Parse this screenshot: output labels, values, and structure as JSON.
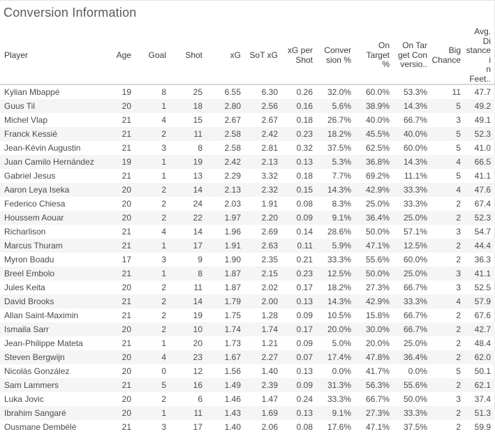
{
  "chart_data": {
    "type": "table",
    "title": "Conversion Information",
    "colors": {
      "row_band": "#f5f5f5",
      "header_rule": "#d9d9d9",
      "text": "#4a4a4a"
    },
    "columns": [
      {
        "key": "player",
        "label": "Player",
        "align": "left"
      },
      {
        "key": "age",
        "label": "Age",
        "align": "right"
      },
      {
        "key": "goal",
        "label": "Goal",
        "align": "right"
      },
      {
        "key": "shot",
        "label": "Shot",
        "align": "right"
      },
      {
        "key": "xg",
        "label": "xG",
        "align": "right"
      },
      {
        "key": "sot_xg",
        "label": "SoT xG",
        "align": "right"
      },
      {
        "key": "xg_per_shot",
        "label": "xG per\nShot",
        "align": "right"
      },
      {
        "key": "conversion_pct",
        "label": "Conver\nsion %",
        "align": "right"
      },
      {
        "key": "on_target_pct",
        "label": "On\nTarget\n%",
        "align": "right"
      },
      {
        "key": "on_target_conversion",
        "label": "On Tar\nget Con\nversio..",
        "align": "right"
      },
      {
        "key": "big_chance",
        "label": "Big\nChance",
        "align": "right"
      },
      {
        "key": "avg_distance_feet",
        "label": "Avg. Di\nstance i\nn Feet..",
        "align": "right"
      }
    ],
    "rows": [
      [
        "Kylian Mbappé",
        "19",
        "8",
        "25",
        "6.55",
        "6.30",
        "0.26",
        "32.0%",
        "60.0%",
        "53.3%",
        "11",
        "47.7"
      ],
      [
        "Guus Til",
        "20",
        "1",
        "18",
        "2.80",
        "2.56",
        "0.16",
        "5.6%",
        "38.9%",
        "14.3%",
        "5",
        "49.2"
      ],
      [
        "Michel Vlap",
        "21",
        "4",
        "15",
        "2.67",
        "2.67",
        "0.18",
        "26.7%",
        "40.0%",
        "66.7%",
        "3",
        "49.1"
      ],
      [
        "Franck Kessié",
        "21",
        "2",
        "11",
        "2.58",
        "2.42",
        "0.23",
        "18.2%",
        "45.5%",
        "40.0%",
        "5",
        "52.3"
      ],
      [
        "Jean-Kévin Augustin",
        "21",
        "3",
        "8",
        "2.58",
        "2.81",
        "0.32",
        "37.5%",
        "62.5%",
        "60.0%",
        "5",
        "41.0"
      ],
      [
        "Juan Camilo Hernández",
        "19",
        "1",
        "19",
        "2.42",
        "2.13",
        "0.13",
        "5.3%",
        "36.8%",
        "14.3%",
        "4",
        "66.5"
      ],
      [
        "Gabriel Jesus",
        "21",
        "1",
        "13",
        "2.29",
        "3.32",
        "0.18",
        "7.7%",
        "69.2%",
        "11.1%",
        "5",
        "41.1"
      ],
      [
        "Aaron Leya Iseka",
        "20",
        "2",
        "14",
        "2.13",
        "2.32",
        "0.15",
        "14.3%",
        "42.9%",
        "33.3%",
        "4",
        "47.6"
      ],
      [
        "Federico Chiesa",
        "20",
        "2",
        "24",
        "2.03",
        "1.91",
        "0.08",
        "8.3%",
        "25.0%",
        "33.3%",
        "2",
        "67.4"
      ],
      [
        "Houssem Aouar",
        "20",
        "2",
        "22",
        "1.97",
        "2.20",
        "0.09",
        "9.1%",
        "36.4%",
        "25.0%",
        "2",
        "52.3"
      ],
      [
        "Richarlison",
        "21",
        "4",
        "14",
        "1.96",
        "2.69",
        "0.14",
        "28.6%",
        "50.0%",
        "57.1%",
        "3",
        "54.7"
      ],
      [
        "Marcus Thuram",
        "21",
        "1",
        "17",
        "1.91",
        "2.63",
        "0.11",
        "5.9%",
        "47.1%",
        "12.5%",
        "2",
        "44.4"
      ],
      [
        "Myron Boadu",
        "17",
        "3",
        "9",
        "1.90",
        "2.35",
        "0.21",
        "33.3%",
        "55.6%",
        "60.0%",
        "2",
        "36.3"
      ],
      [
        "Breel Embolo",
        "21",
        "1",
        "8",
        "1.87",
        "2.15",
        "0.23",
        "12.5%",
        "50.0%",
        "25.0%",
        "3",
        "41.1"
      ],
      [
        "Jules Keita",
        "20",
        "2",
        "11",
        "1.87",
        "2.02",
        "0.17",
        "18.2%",
        "27.3%",
        "66.7%",
        "3",
        "52.5"
      ],
      [
        "David Brooks",
        "21",
        "2",
        "14",
        "1.79",
        "2.00",
        "0.13",
        "14.3%",
        "42.9%",
        "33.3%",
        "4",
        "57.9"
      ],
      [
        "Allan Saint-Maximin",
        "21",
        "2",
        "19",
        "1.75",
        "1.28",
        "0.09",
        "10.5%",
        "15.8%",
        "66.7%",
        "2",
        "67.6"
      ],
      [
        "Ismaila Sarr",
        "20",
        "2",
        "10",
        "1.74",
        "1.74",
        "0.17",
        "20.0%",
        "30.0%",
        "66.7%",
        "2",
        "42.7"
      ],
      [
        "Jean-Philippe Mateta",
        "21",
        "1",
        "20",
        "1.73",
        "1.21",
        "0.09",
        "5.0%",
        "20.0%",
        "25.0%",
        "2",
        "48.4"
      ],
      [
        "Steven Bergwijn",
        "20",
        "4",
        "23",
        "1.67",
        "2.27",
        "0.07",
        "17.4%",
        "47.8%",
        "36.4%",
        "2",
        "62.0"
      ],
      [
        "Nicolás González",
        "20",
        "0",
        "12",
        "1.56",
        "1.40",
        "0.13",
        "0.0%",
        "41.7%",
        "0.0%",
        "5",
        "50.1"
      ],
      [
        "Sam Lammers",
        "21",
        "5",
        "16",
        "1.49",
        "2.39",
        "0.09",
        "31.3%",
        "56.3%",
        "55.6%",
        "2",
        "62.1"
      ],
      [
        "Luka Jovic",
        "20",
        "2",
        "6",
        "1.46",
        "1.47",
        "0.24",
        "33.3%",
        "66.7%",
        "50.0%",
        "3",
        "37.4"
      ],
      [
        "Ibrahim Sangaré",
        "20",
        "1",
        "11",
        "1.43",
        "1.69",
        "0.13",
        "9.1%",
        "27.3%",
        "33.3%",
        "2",
        "51.3"
      ],
      [
        "Ousmane Dembélé",
        "21",
        "3",
        "17",
        "1.40",
        "2.06",
        "0.08",
        "17.6%",
        "47.1%",
        "37.5%",
        "2",
        "59.9"
      ]
    ]
  }
}
